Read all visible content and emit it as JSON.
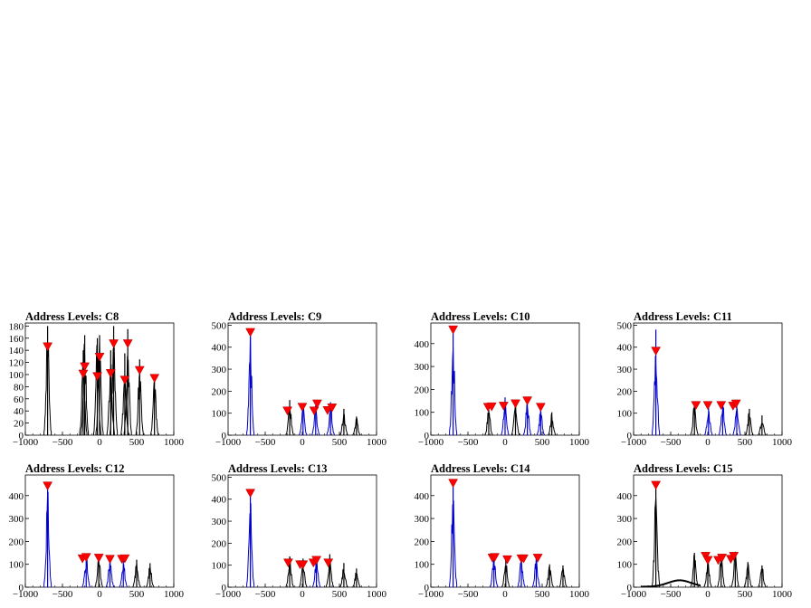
{
  "chart_data": [
    {
      "type": "histogram",
      "title": "Address Levels: C8",
      "xlim": [
        -1000,
        1000
      ],
      "ylim": [
        0,
        185
      ],
      "xticks": [
        -1000,
        -500,
        0,
        500,
        1000
      ],
      "yticks": [
        0,
        20,
        40,
        60,
        80,
        100,
        120,
        140,
        160,
        180
      ],
      "peaks": [
        {
          "x": -700,
          "y": 180,
          "color": "black"
        },
        {
          "x": -220,
          "y": 140,
          "color": "black"
        },
        {
          "x": -200,
          "y": 165,
          "color": "black"
        },
        {
          "x": -30,
          "y": 160,
          "color": "black"
        },
        {
          "x": 0,
          "y": 165,
          "color": "black"
        },
        {
          "x": 150,
          "y": 140,
          "color": "black"
        },
        {
          "x": 190,
          "y": 180,
          "color": "black"
        },
        {
          "x": 340,
          "y": 135,
          "color": "black"
        },
        {
          "x": 380,
          "y": 175,
          "color": "black"
        },
        {
          "x": 540,
          "y": 125,
          "color": "black"
        },
        {
          "x": 740,
          "y": 95,
          "color": "black"
        }
      ],
      "markers": [
        {
          "x": -700,
          "y": 145
        },
        {
          "x": -220,
          "y": 100
        },
        {
          "x": -200,
          "y": 112
        },
        {
          "x": -30,
          "y": 96
        },
        {
          "x": 0,
          "y": 128
        },
        {
          "x": 150,
          "y": 101
        },
        {
          "x": 190,
          "y": 150
        },
        {
          "x": 340,
          "y": 90
        },
        {
          "x": 380,
          "y": 150
        },
        {
          "x": 540,
          "y": 106
        },
        {
          "x": 740,
          "y": 93
        }
      ]
    },
    {
      "type": "histogram",
      "title": "Address Levels: C9",
      "xlim": [
        -1000,
        1000
      ],
      "ylim": [
        0,
        510
      ],
      "xticks": [
        -1000,
        -500,
        0,
        500,
        1000
      ],
      "yticks": [
        0,
        100,
        200,
        300,
        400,
        500
      ],
      "peaks": [
        {
          "x": -700,
          "y": 465,
          "color": "blue"
        },
        {
          "x": -170,
          "y": 160,
          "color": "black"
        },
        {
          "x": 10,
          "y": 140,
          "color": "blue"
        },
        {
          "x": 180,
          "y": 135,
          "color": "blue"
        },
        {
          "x": 380,
          "y": 150,
          "color": "blue"
        },
        {
          "x": 560,
          "y": 120,
          "color": "black"
        },
        {
          "x": 730,
          "y": 85,
          "color": "black"
        }
      ],
      "markers": [
        {
          "x": -700,
          "y": 465
        },
        {
          "x": -200,
          "y": 108
        },
        {
          "x": 0,
          "y": 125
        },
        {
          "x": 160,
          "y": 108
        },
        {
          "x": 200,
          "y": 140
        },
        {
          "x": 340,
          "y": 110
        },
        {
          "x": 400,
          "y": 122
        }
      ]
    },
    {
      "type": "histogram",
      "title": "Address Levels: C10",
      "xlim": [
        -1000,
        1000
      ],
      "ylim": [
        0,
        490
      ],
      "xticks": [
        -1000,
        -500,
        0,
        500,
        1000
      ],
      "yticks": [
        0,
        100,
        200,
        300,
        400
      ],
      "peaks": [
        {
          "x": -700,
          "y": 460,
          "color": "blue"
        },
        {
          "x": -220,
          "y": 130,
          "color": "black"
        },
        {
          "x": 0,
          "y": 165,
          "color": "blue"
        },
        {
          "x": 140,
          "y": 155,
          "color": "black"
        },
        {
          "x": 300,
          "y": 155,
          "color": "blue"
        },
        {
          "x": 480,
          "y": 115,
          "color": "blue"
        },
        {
          "x": 630,
          "y": 100,
          "color": "black"
        }
      ],
      "markers": [
        {
          "x": -700,
          "y": 458
        },
        {
          "x": -230,
          "y": 120
        },
        {
          "x": -180,
          "y": 122
        },
        {
          "x": -20,
          "y": 125
        },
        {
          "x": 140,
          "y": 135
        },
        {
          "x": 300,
          "y": 148
        },
        {
          "x": 480,
          "y": 120
        }
      ]
    },
    {
      "type": "histogram",
      "title": "Address Levels: C11",
      "xlim": [
        -1000,
        1000
      ],
      "ylim": [
        0,
        510
      ],
      "xticks": [
        -1000,
        -500,
        0,
        500,
        1000
      ],
      "yticks": [
        0,
        100,
        200,
        300,
        400,
        500
      ],
      "peaks": [
        {
          "x": -700,
          "y": 480,
          "color": "blue"
        },
        {
          "x": -180,
          "y": 150,
          "color": "black"
        },
        {
          "x": 10,
          "y": 140,
          "color": "blue"
        },
        {
          "x": 200,
          "y": 150,
          "color": "blue"
        },
        {
          "x": 390,
          "y": 155,
          "color": "blue"
        },
        {
          "x": 560,
          "y": 120,
          "color": "black"
        },
        {
          "x": 730,
          "y": 90,
          "color": "black"
        }
      ],
      "markers": [
        {
          "x": -700,
          "y": 380
        },
        {
          "x": -160,
          "y": 133
        },
        {
          "x": 0,
          "y": 133
        },
        {
          "x": 180,
          "y": 133
        },
        {
          "x": 340,
          "y": 130
        },
        {
          "x": 380,
          "y": 140
        }
      ]
    },
    {
      "type": "histogram",
      "title": "Address Levels: C12",
      "xlim": [
        -1000,
        1000
      ],
      "ylim": [
        0,
        490
      ],
      "xticks": [
        -1000,
        -500,
        0,
        500,
        1000
      ],
      "yticks": [
        0,
        100,
        200,
        300,
        400
      ],
      "peaks": [
        {
          "x": -700,
          "y": 440,
          "color": "blue"
        },
        {
          "x": -180,
          "y": 145,
          "color": "blue"
        },
        {
          "x": -10,
          "y": 140,
          "color": "black"
        },
        {
          "x": 140,
          "y": 135,
          "color": "blue"
        },
        {
          "x": 320,
          "y": 130,
          "color": "blue"
        },
        {
          "x": 500,
          "y": 120,
          "color": "black"
        },
        {
          "x": 680,
          "y": 105,
          "color": "black"
        }
      ],
      "markers": [
        {
          "x": -700,
          "y": 440
        },
        {
          "x": -230,
          "y": 122
        },
        {
          "x": -180,
          "y": 128
        },
        {
          "x": -10,
          "y": 125
        },
        {
          "x": 140,
          "y": 120
        },
        {
          "x": 300,
          "y": 120
        },
        {
          "x": 340,
          "y": 122
        }
      ]
    },
    {
      "type": "histogram",
      "title": "Address Levels: C13",
      "xlim": [
        -1000,
        1000
      ],
      "ylim": [
        0,
        510
      ],
      "xticks": [
        -1000,
        -500,
        0,
        500,
        1000
      ],
      "yticks": [
        0,
        100,
        200,
        300,
        400,
        500
      ],
      "peaks": [
        {
          "x": -700,
          "y": 430,
          "color": "blue"
        },
        {
          "x": -170,
          "y": 140,
          "color": "black"
        },
        {
          "x": 10,
          "y": 130,
          "color": "black"
        },
        {
          "x": 190,
          "y": 140,
          "color": "blue"
        },
        {
          "x": 370,
          "y": 150,
          "color": "black"
        },
        {
          "x": 560,
          "y": 110,
          "color": "black"
        },
        {
          "x": 730,
          "y": 85,
          "color": "black"
        }
      ],
      "markers": [
        {
          "x": -700,
          "y": 425
        },
        {
          "x": -190,
          "y": 108
        },
        {
          "x": -30,
          "y": 100
        },
        {
          "x": 10,
          "y": 100
        },
        {
          "x": 150,
          "y": 108
        },
        {
          "x": 190,
          "y": 120
        },
        {
          "x": 350,
          "y": 108
        }
      ]
    },
    {
      "type": "histogram",
      "title": "Address Levels: C14",
      "xlim": [
        -1000,
        1000
      ],
      "ylim": [
        0,
        490
      ],
      "xticks": [
        -1000,
        -500,
        0,
        500,
        1000
      ],
      "yticks": [
        0,
        100,
        200,
        300,
        400
      ],
      "peaks": [
        {
          "x": -700,
          "y": 455,
          "color": "blue"
        },
        {
          "x": -150,
          "y": 140,
          "color": "blue"
        },
        {
          "x": 10,
          "y": 125,
          "color": "black"
        },
        {
          "x": 220,
          "y": 135,
          "color": "blue"
        },
        {
          "x": 420,
          "y": 130,
          "color": "blue"
        },
        {
          "x": 600,
          "y": 100,
          "color": "black"
        },
        {
          "x": 780,
          "y": 95,
          "color": "black"
        }
      ],
      "markers": [
        {
          "x": -700,
          "y": 452
        },
        {
          "x": -170,
          "y": 125
        },
        {
          "x": -140,
          "y": 128
        },
        {
          "x": 30,
          "y": 118
        },
        {
          "x": 220,
          "y": 122
        },
        {
          "x": 250,
          "y": 122
        },
        {
          "x": 440,
          "y": 125
        }
      ]
    },
    {
      "type": "histogram",
      "title": "Address Levels: C15",
      "xlim": [
        -1000,
        1000
      ],
      "ylim": [
        0,
        490
      ],
      "xticks": [
        -1000,
        -500,
        0,
        500,
        1000
      ],
      "yticks": [
        0,
        100,
        200,
        300,
        400
      ],
      "peaks": [
        {
          "x": -700,
          "y": 445,
          "color": "black"
        },
        {
          "x": -180,
          "y": 150,
          "color": "black"
        },
        {
          "x": 0,
          "y": 130,
          "color": "black"
        },
        {
          "x": 180,
          "y": 145,
          "color": "black"
        },
        {
          "x": 370,
          "y": 155,
          "color": "black"
        },
        {
          "x": 540,
          "y": 110,
          "color": "black"
        },
        {
          "x": 730,
          "y": 95,
          "color": "black"
        }
      ],
      "markers": [
        {
          "x": -700,
          "y": 443
        },
        {
          "x": -30,
          "y": 133
        },
        {
          "x": 0,
          "y": 115
        },
        {
          "x": 140,
          "y": 115
        },
        {
          "x": 190,
          "y": 125
        },
        {
          "x": 310,
          "y": 120
        },
        {
          "x": 350,
          "y": 133
        }
      ]
    }
  ],
  "colors": {
    "black": "#000000",
    "blue": "#0000cc",
    "marker": "#ff0000",
    "frame": "#000000"
  }
}
